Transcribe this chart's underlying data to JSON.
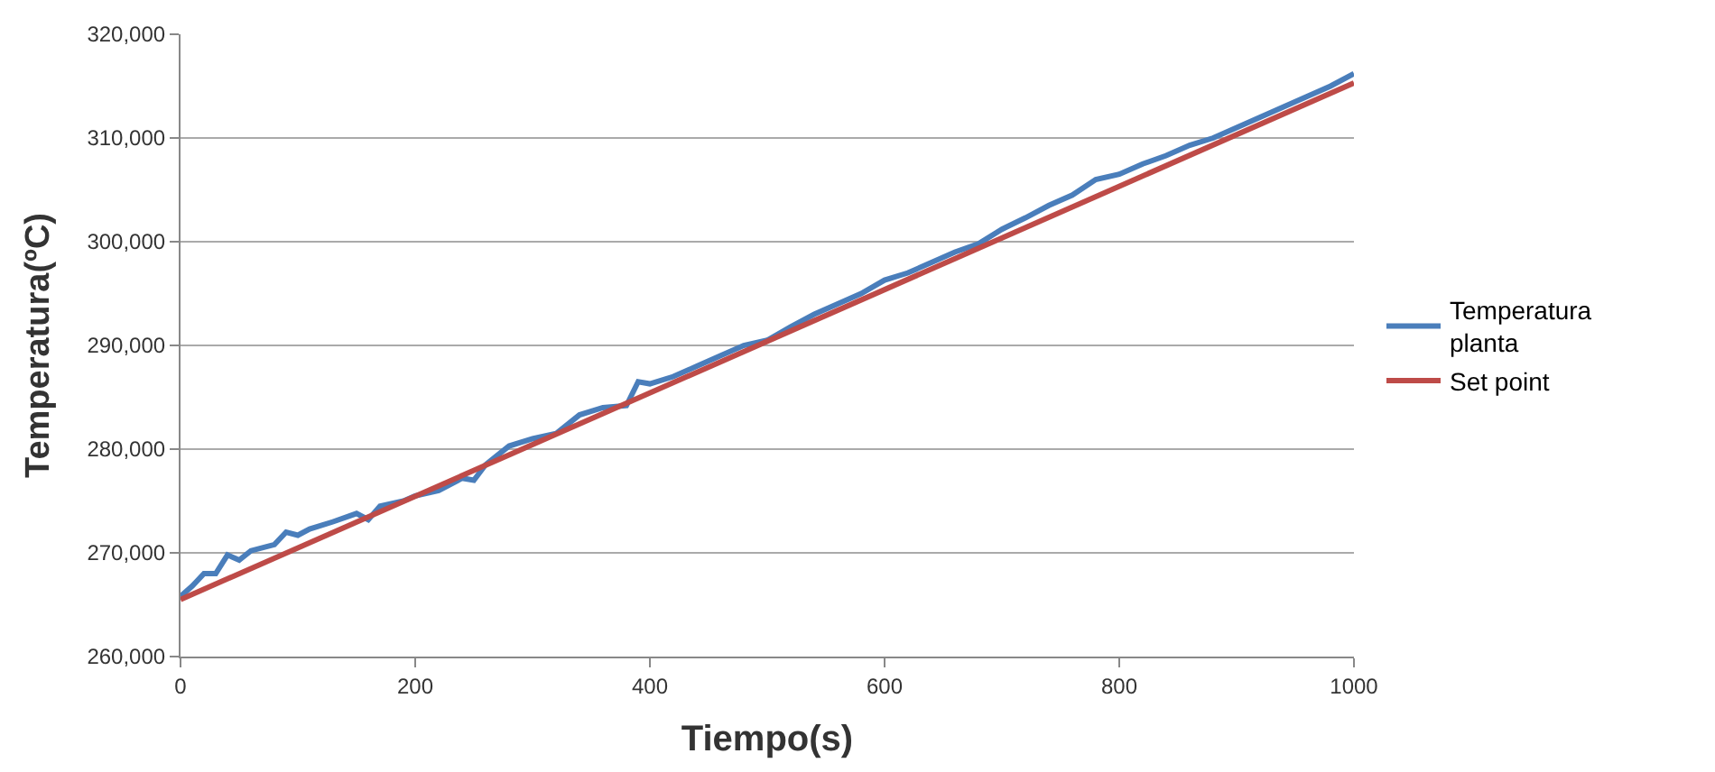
{
  "chart_data": {
    "type": "line",
    "xlabel": "Tiempo(s)",
    "ylabel": "Temperatura(ºC)",
    "xlim": [
      0,
      1000
    ],
    "xticks": [
      0,
      200,
      400,
      600,
      800,
      1000
    ],
    "ylim": [
      260000,
      320000
    ],
    "yticks": [
      {
        "value": 260000,
        "label": "260,000"
      },
      {
        "value": 270000,
        "label": "270,000"
      },
      {
        "value": 280000,
        "label": "280,000"
      },
      {
        "value": 290000,
        "label": "290,000"
      },
      {
        "value": 300000,
        "label": "300,000"
      },
      {
        "value": 310000,
        "label": "310,000"
      },
      {
        "value": 320000,
        "label": "320,000"
      }
    ],
    "grid": "y",
    "legend": "right",
    "series": [
      {
        "name": "Temperatura planta",
        "color": "#4a7ebb",
        "x": [
          0,
          10,
          20,
          30,
          40,
          50,
          60,
          80,
          90,
          100,
          110,
          130,
          150,
          160,
          170,
          190,
          200,
          220,
          240,
          250,
          260,
          280,
          300,
          320,
          340,
          360,
          380,
          390,
          400,
          420,
          440,
          460,
          480,
          500,
          520,
          540,
          560,
          580,
          600,
          620,
          640,
          660,
          680,
          700,
          720,
          740,
          760,
          780,
          800,
          820,
          840,
          860,
          880,
          900,
          920,
          940,
          960,
          980,
          1000
        ],
        "values": [
          265800,
          266800,
          268000,
          268000,
          269800,
          269300,
          270200,
          270800,
          272000,
          271700,
          272300,
          273000,
          273800,
          273200,
          274500,
          275000,
          275500,
          276000,
          277200,
          277000,
          278500,
          280300,
          281000,
          281500,
          283300,
          284000,
          284200,
          286500,
          286300,
          287000,
          288000,
          289000,
          290000,
          290500,
          291800,
          293000,
          294000,
          295000,
          296300,
          297000,
          298000,
          299000,
          299800,
          301200,
          302300,
          303500,
          304500,
          306000,
          306500,
          307500,
          308300,
          309300,
          310000,
          311000,
          312000,
          313000,
          314000,
          315000,
          316200
        ]
      },
      {
        "name": "Set point",
        "color": "#be4b48",
        "x": [
          0,
          1000
        ],
        "values": [
          265500,
          315300
        ]
      }
    ]
  }
}
